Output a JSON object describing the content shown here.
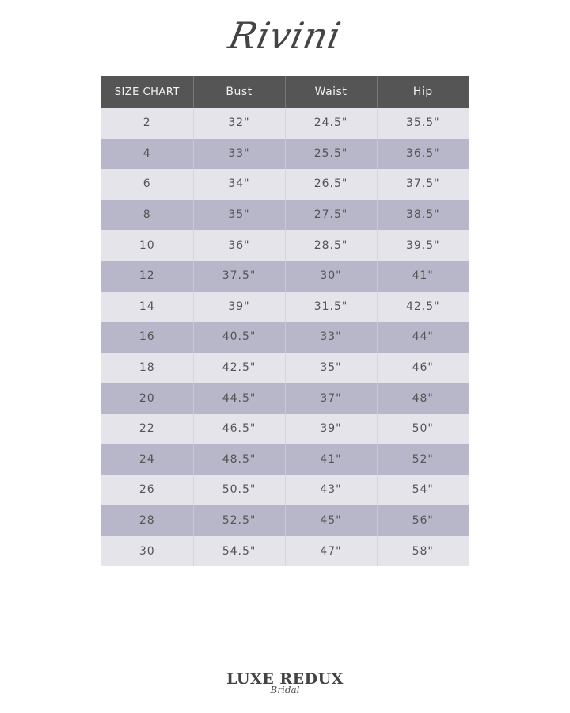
{
  "brand": "Rivini",
  "table": {
    "headers": [
      "SIZE CHART",
      "Bust",
      "Waist",
      "Hip"
    ],
    "rows": [
      [
        "2",
        "32\"",
        "24.5\"",
        "35.5\""
      ],
      [
        "4",
        "33\"",
        "25.5\"",
        "36.5\""
      ],
      [
        "6",
        "34\"",
        "26.5\"",
        "37.5\""
      ],
      [
        "8",
        "35\"",
        "27.5\"",
        "38.5\""
      ],
      [
        "10",
        "36\"",
        "28.5\"",
        "39.5\""
      ],
      [
        "12",
        "37.5\"",
        "30\"",
        "41\""
      ],
      [
        "14",
        "39\"",
        "31.5\"",
        "42.5\""
      ],
      [
        "16",
        "40.5\"",
        "33\"",
        "44\""
      ],
      [
        "18",
        "42.5\"",
        "35\"",
        "46\""
      ],
      [
        "20",
        "44.5\"",
        "37\"",
        "48\""
      ],
      [
        "22",
        "46.5\"",
        "39\"",
        "50\""
      ],
      [
        "24",
        "48.5\"",
        "41\"",
        "52\""
      ],
      [
        "26",
        "50.5\"",
        "43\"",
        "54\""
      ],
      [
        "28",
        "52.5\"",
        "45\"",
        "56\""
      ],
      [
        "30",
        "54.5\"",
        "47\"",
        "58\""
      ]
    ]
  },
  "footer": {
    "logo_main": "LUXE REDUX",
    "logo_sub": "Bridal"
  },
  "colors": {
    "header": "#555555",
    "row_light": "#e5e4ea",
    "row_dark": "#b8b7c9"
  }
}
